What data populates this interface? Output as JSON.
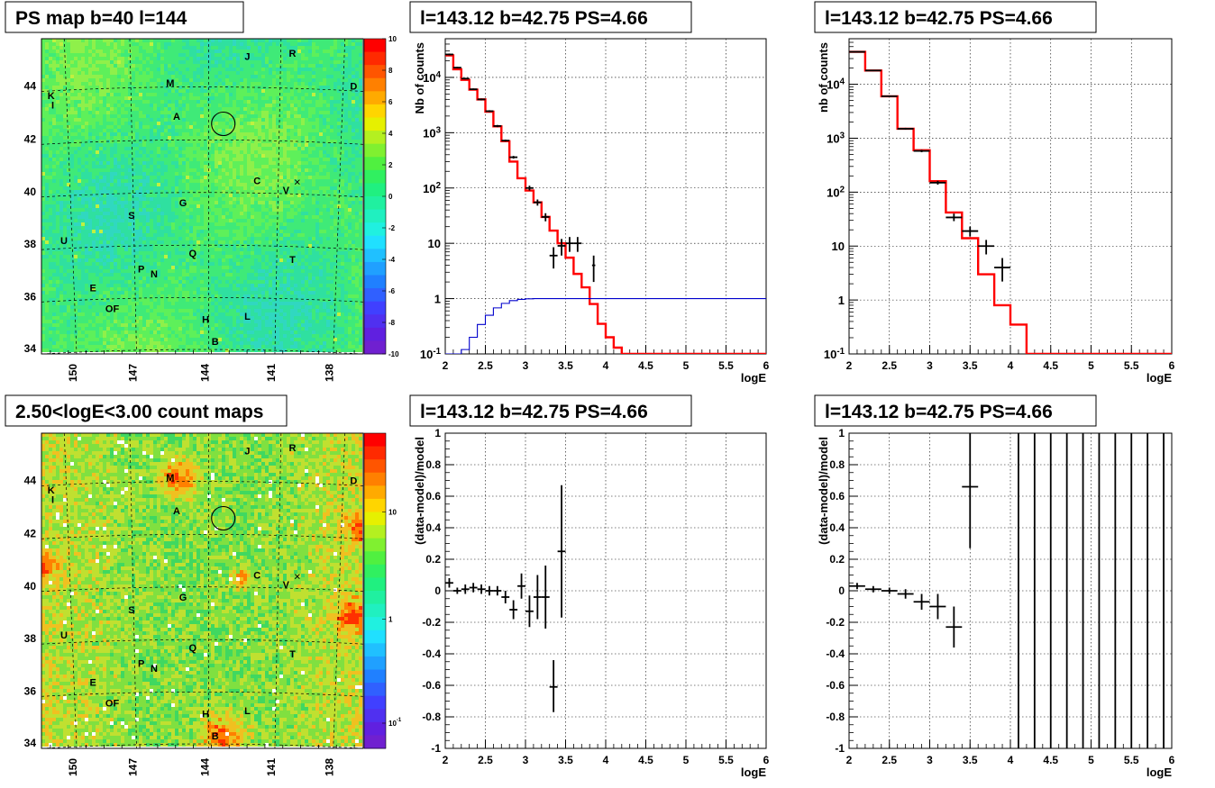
{
  "titles": {
    "ps_map": "PS map b=40 l=144",
    "count_map": "2.50<logE<3.00 count maps",
    "spec1": "l=143.12 b=42.75 PS=4.66",
    "spec2": "l=143.12 b=42.75 PS=4.66",
    "res1": "l=143.12 b=42.75 PS=4.66",
    "res2": "l=143.12 b=42.75 PS=4.66"
  },
  "maps": {
    "lat_ticks": [
      "34",
      "36",
      "38",
      "40",
      "42",
      "44"
    ],
    "lon_ticks": [
      "150",
      "147",
      "144",
      "141",
      "138"
    ],
    "ps_colorbar_ticks": [
      "10",
      "8",
      "6",
      "4",
      "2",
      "0",
      "-2",
      "-4",
      "-6",
      "-8",
      "-10"
    ],
    "count_colorbar_ticks": [
      "10",
      "1",
      "10^-1"
    ],
    "sources": [
      "J",
      "R",
      "M",
      "D",
      "K",
      "I",
      "A",
      "C",
      "V",
      "G",
      "S",
      "U",
      "T",
      "Q",
      "P",
      "N",
      "E",
      "OF",
      "H",
      "L",
      "B"
    ],
    "marker_x": "×",
    "colors": {
      "ps_base": "#4de87a",
      "count_base": "#7ee04a",
      "hot": "#ff2a00"
    }
  },
  "chart_data": [
    {
      "type": "line",
      "panel": "spec1",
      "title": "l=143.12 b=42.75 PS=4.66",
      "xlabel": "logE",
      "ylabel": "Nb of counts",
      "xlim": [
        2,
        6
      ],
      "ylim": [
        0.1,
        50000
      ],
      "log_y": true,
      "grid": true,
      "x_ticks": [
        "2",
        "2.5",
        "3",
        "3.5",
        "4",
        "4.5",
        "5",
        "5.5",
        "6"
      ],
      "y_ticks": [
        "10^-1",
        "1",
        "10",
        "10^2",
        "10^3",
        "10^4"
      ],
      "series": [
        {
          "color": "#ff0000",
          "bin_edges": [
            2,
            2.1,
            2.2,
            2.3,
            2.4,
            2.5,
            2.6,
            2.7,
            2.8,
            2.9,
            3.0,
            3.1,
            3.2,
            3.3,
            3.4,
            3.5,
            3.6,
            3.7,
            3.8,
            3.9,
            4.0,
            4.1,
            4.2,
            6.0
          ],
          "values": [
            25000,
            14000,
            9000,
            6000,
            4000,
            2400,
            1300,
            700,
            300,
            150,
            90,
            55,
            30,
            17,
            10,
            5.5,
            2.8,
            1.6,
            0.8,
            0.35,
            0.2,
            0.13,
            0.1
          ]
        },
        {
          "color": "#0000cc",
          "bin_edges": [
            2,
            2.2,
            2.3,
            2.4,
            2.5,
            2.6,
            2.7,
            2.8,
            2.9,
            3.0,
            3.1,
            6.0
          ],
          "values": [
            0.1,
            0.12,
            0.2,
            0.34,
            0.5,
            0.68,
            0.82,
            0.92,
            0.97,
            0.99,
            1.0
          ]
        }
      ],
      "points": [
        {
          "x": 2.05,
          "y": 26000,
          "xerr": 0.05,
          "ylo": 25000,
          "yhi": 27000
        },
        {
          "x": 2.15,
          "y": 15000,
          "xerr": 0.05,
          "ylo": 14500,
          "yhi": 15500
        },
        {
          "x": 2.25,
          "y": 9500,
          "xerr": 0.05,
          "ylo": 9200,
          "yhi": 9800
        },
        {
          "x": 2.35,
          "y": 6100,
          "xerr": 0.05,
          "ylo": 5900,
          "yhi": 6300
        },
        {
          "x": 2.45,
          "y": 4000,
          "xerr": 0.05,
          "ylo": 3850,
          "yhi": 4150
        },
        {
          "x": 2.55,
          "y": 2450,
          "xerr": 0.05,
          "ylo": 2350,
          "yhi": 2550
        },
        {
          "x": 2.65,
          "y": 1320,
          "xerr": 0.05,
          "ylo": 1260,
          "yhi": 1380
        },
        {
          "x": 2.75,
          "y": 720,
          "xerr": 0.05,
          "ylo": 690,
          "yhi": 750
        },
        {
          "x": 2.85,
          "y": 360,
          "xerr": 0.05,
          "ylo": 340,
          "yhi": 380
        },
        {
          "x": 3.05,
          "y": 100,
          "xerr": 0.05,
          "ylo": 90,
          "yhi": 110
        },
        {
          "x": 3.15,
          "y": 55,
          "xerr": 0.05,
          "ylo": 48,
          "yhi": 62
        },
        {
          "x": 3.25,
          "y": 30,
          "xerr": 0.05,
          "ylo": 25,
          "yhi": 35
        },
        {
          "x": 3.35,
          "y": 6,
          "xerr": 0.05,
          "ylo": 3.5,
          "yhi": 8.5
        },
        {
          "x": 3.45,
          "y": 9,
          "xerr": 0.05,
          "ylo": 6,
          "yhi": 12
        },
        {
          "x": 3.55,
          "y": 10,
          "xerr": 0.05,
          "ylo": 7,
          "yhi": 13
        },
        {
          "x": 3.65,
          "y": 10,
          "xerr": 0.05,
          "ylo": 7,
          "yhi": 13
        },
        {
          "x": 3.85,
          "y": 4,
          "xerr": 0.02,
          "ylo": 2,
          "yhi": 6
        }
      ]
    },
    {
      "type": "line",
      "panel": "spec2",
      "title": "l=143.12 b=42.75 PS=4.66",
      "xlabel": "logE",
      "ylabel": "nb of counts",
      "xlim": [
        2,
        6
      ],
      "ylim": [
        0.1,
        70000
      ],
      "log_y": true,
      "grid": true,
      "x_ticks": [
        "2",
        "2.5",
        "3",
        "3.5",
        "4",
        "4.5",
        "5",
        "5.5",
        "6"
      ],
      "y_ticks": [
        "10^-1",
        "1",
        "10",
        "10^2",
        "10^3",
        "10^4"
      ],
      "series": [
        {
          "color": "#ff0000",
          "bin_edges": [
            2,
            2.2,
            2.4,
            2.6,
            2.8,
            3.0,
            3.2,
            3.4,
            3.6,
            3.8,
            4.0,
            4.2,
            6.0
          ],
          "values": [
            40000,
            18000,
            6000,
            1500,
            600,
            160,
            42,
            14,
            3,
            0.8,
            0.35,
            0.1
          ]
        }
      ],
      "points": [
        {
          "x": 2.1,
          "y": 40000,
          "xerr": 0.1,
          "ylo": 39000,
          "yhi": 41000
        },
        {
          "x": 2.3,
          "y": 18000,
          "xerr": 0.1,
          "ylo": 17500,
          "yhi": 18500
        },
        {
          "x": 2.5,
          "y": 6000,
          "xerr": 0.1,
          "ylo": 5800,
          "yhi": 6200
        },
        {
          "x": 2.7,
          "y": 1500,
          "xerr": 0.1,
          "ylo": 1440,
          "yhi": 1560
        },
        {
          "x": 2.9,
          "y": 580,
          "xerr": 0.1,
          "ylo": 550,
          "yhi": 610
        },
        {
          "x": 3.1,
          "y": 150,
          "xerr": 0.1,
          "ylo": 138,
          "yhi": 162
        },
        {
          "x": 3.3,
          "y": 34,
          "xerr": 0.1,
          "ylo": 29,
          "yhi": 40
        },
        {
          "x": 3.5,
          "y": 19,
          "xerr": 0.1,
          "ylo": 15,
          "yhi": 23
        },
        {
          "x": 3.7,
          "y": 10,
          "xerr": 0.1,
          "ylo": 7,
          "yhi": 13
        },
        {
          "x": 3.9,
          "y": 4,
          "xerr": 0.1,
          "ylo": 2.2,
          "yhi": 6
        }
      ]
    },
    {
      "type": "scatter",
      "panel": "res1",
      "title": "l=143.12 b=42.75 PS=4.66",
      "xlabel": "logE",
      "ylabel": "(data-model)/model",
      "xlim": [
        2,
        6
      ],
      "ylim": [
        -1,
        1
      ],
      "grid": true,
      "x_ticks": [
        "2",
        "2.5",
        "3",
        "3.5",
        "4",
        "4.5",
        "5",
        "5.5",
        "6"
      ],
      "y_ticks": [
        "-1",
        "-0.8",
        "-0.6",
        "-0.4",
        "-0.2",
        "0",
        "0.2",
        "0.4",
        "0.6",
        "0.8",
        "1"
      ],
      "points": [
        {
          "x": 2.05,
          "y": 0.05,
          "xerr": 0.05,
          "ylo": 0.02,
          "yhi": 0.08
        },
        {
          "x": 2.15,
          "y": 0.0,
          "xerr": 0.05,
          "ylo": -0.02,
          "yhi": 0.02
        },
        {
          "x": 2.25,
          "y": 0.01,
          "xerr": 0.05,
          "ylo": -0.02,
          "yhi": 0.04
        },
        {
          "x": 2.35,
          "y": 0.02,
          "xerr": 0.05,
          "ylo": -0.01,
          "yhi": 0.05
        },
        {
          "x": 2.45,
          "y": 0.01,
          "xerr": 0.05,
          "ylo": -0.02,
          "yhi": 0.04
        },
        {
          "x": 2.55,
          "y": 0.0,
          "xerr": 0.05,
          "ylo": -0.03,
          "yhi": 0.03
        },
        {
          "x": 2.65,
          "y": 0.0,
          "xerr": 0.05,
          "ylo": -0.03,
          "yhi": 0.03
        },
        {
          "x": 2.75,
          "y": -0.04,
          "xerr": 0.05,
          "ylo": -0.08,
          "yhi": 0.0
        },
        {
          "x": 2.85,
          "y": -0.12,
          "xerr": 0.05,
          "ylo": -0.18,
          "yhi": -0.06
        },
        {
          "x": 2.95,
          "y": 0.03,
          "xerr": 0.05,
          "ylo": -0.05,
          "yhi": 0.11
        },
        {
          "x": 3.05,
          "y": -0.13,
          "xerr": 0.05,
          "ylo": -0.23,
          "yhi": -0.03
        },
        {
          "x": 3.15,
          "y": -0.04,
          "xerr": 0.05,
          "ylo": -0.18,
          "yhi": 0.1
        },
        {
          "x": 3.25,
          "y": -0.04,
          "xerr": 0.05,
          "ylo": -0.24,
          "yhi": 0.16
        },
        {
          "x": 3.35,
          "y": -0.61,
          "xerr": 0.05,
          "ylo": -0.77,
          "yhi": -0.44
        },
        {
          "x": 3.45,
          "y": 0.25,
          "xerr": 0.05,
          "ylo": -0.17,
          "yhi": 0.67
        }
      ]
    },
    {
      "type": "scatter",
      "panel": "res2",
      "title": "l=143.12 b=42.75 PS=4.66",
      "xlabel": "logE",
      "ylabel": "(data-model)/model",
      "xlim": [
        2,
        6
      ],
      "ylim": [
        -1,
        1
      ],
      "grid": true,
      "x_ticks": [
        "2",
        "2.5",
        "3",
        "3.5",
        "4",
        "4.5",
        "5",
        "5.5",
        "6"
      ],
      "y_ticks": [
        "-1",
        "-0.8",
        "-0.6",
        "-0.4",
        "-0.2",
        "0",
        "0.2",
        "0.4",
        "0.6",
        "0.8",
        "1"
      ],
      "points": [
        {
          "x": 2.1,
          "y": 0.03,
          "xerr": 0.1,
          "ylo": 0.01,
          "yhi": 0.05
        },
        {
          "x": 2.3,
          "y": 0.01,
          "xerr": 0.1,
          "ylo": -0.01,
          "yhi": 0.03
        },
        {
          "x": 2.5,
          "y": 0.0,
          "xerr": 0.1,
          "ylo": -0.02,
          "yhi": 0.02
        },
        {
          "x": 2.7,
          "y": -0.02,
          "xerr": 0.1,
          "ylo": -0.05,
          "yhi": 0.01
        },
        {
          "x": 2.9,
          "y": -0.07,
          "xerr": 0.1,
          "ylo": -0.12,
          "yhi": -0.02
        },
        {
          "x": 3.1,
          "y": -0.1,
          "xerr": 0.1,
          "ylo": -0.18,
          "yhi": -0.02
        },
        {
          "x": 3.3,
          "y": -0.23,
          "xerr": 0.1,
          "ylo": -0.36,
          "yhi": -0.1
        },
        {
          "x": 3.5,
          "y": 0.66,
          "xerr": 0.1,
          "ylo": 0.27,
          "yhi": 1.0
        },
        {
          "x": 4.1,
          "y": 0.0,
          "xerr": 0,
          "ylo": -1,
          "yhi": 1
        },
        {
          "x": 4.3,
          "y": 0.0,
          "xerr": 0,
          "ylo": -1,
          "yhi": 1
        },
        {
          "x": 4.5,
          "y": 0.0,
          "xerr": 0,
          "ylo": -1,
          "yhi": 1
        },
        {
          "x": 4.7,
          "y": 0.0,
          "xerr": 0,
          "ylo": -1,
          "yhi": 1
        },
        {
          "x": 4.9,
          "y": 0.0,
          "xerr": 0,
          "ylo": -1,
          "yhi": 1
        },
        {
          "x": 5.1,
          "y": 0.0,
          "xerr": 0,
          "ylo": -1,
          "yhi": 1
        },
        {
          "x": 5.3,
          "y": 0.0,
          "xerr": 0,
          "ylo": -1,
          "yhi": 1
        },
        {
          "x": 5.5,
          "y": 0.0,
          "xerr": 0,
          "ylo": -1,
          "yhi": 1
        },
        {
          "x": 5.7,
          "y": 0.0,
          "xerr": 0,
          "ylo": -1,
          "yhi": 1
        },
        {
          "x": 5.9,
          "y": 0.0,
          "xerr": 0,
          "ylo": -1,
          "yhi": 1
        }
      ]
    }
  ]
}
